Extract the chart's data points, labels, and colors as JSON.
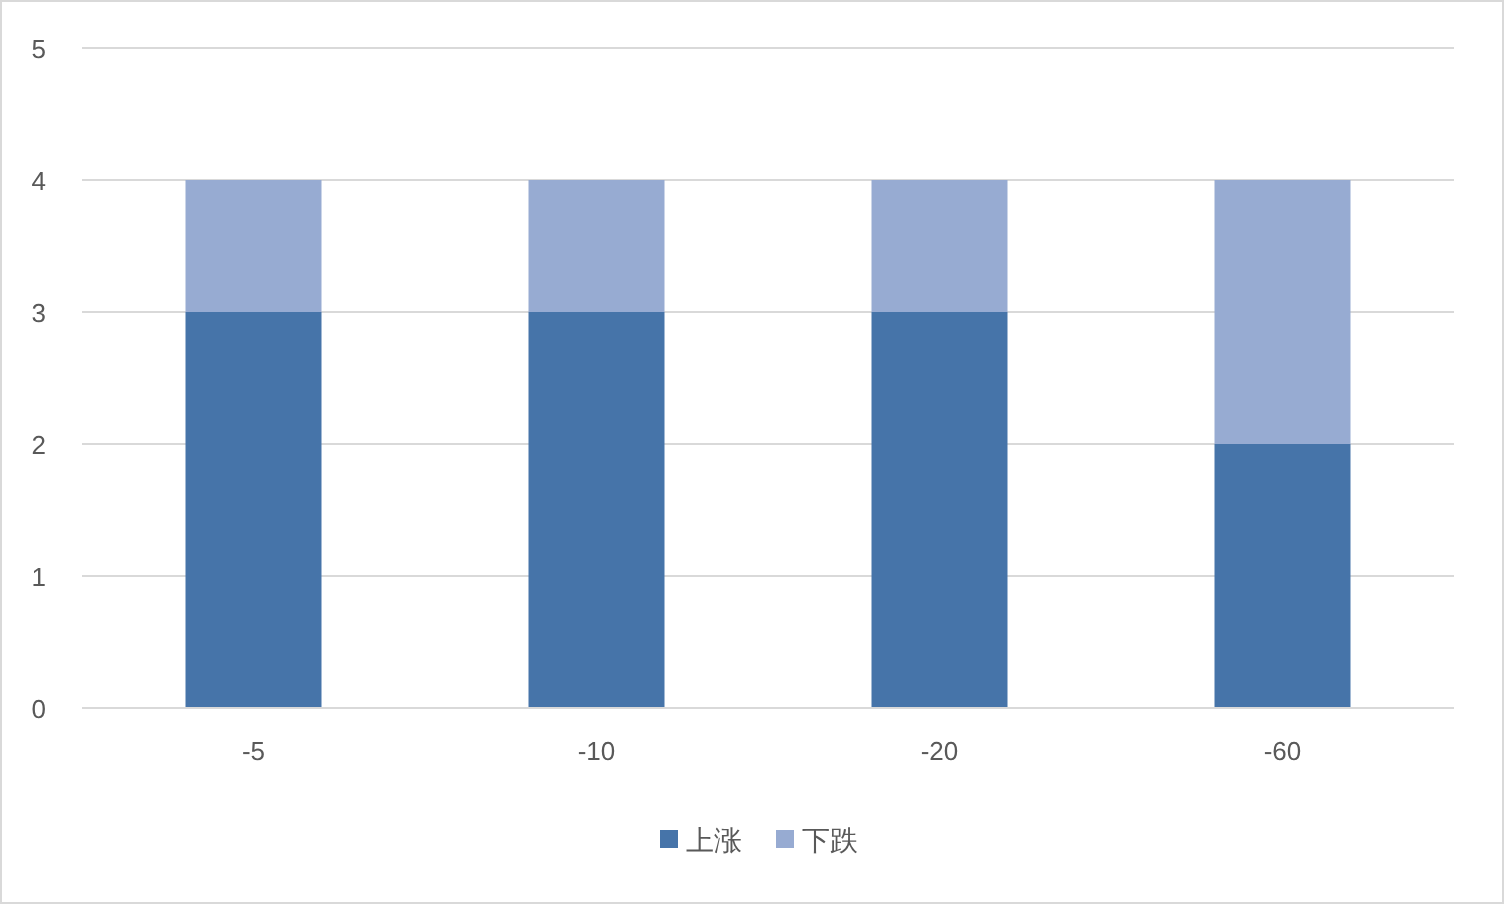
{
  "chart_data": {
    "type": "bar",
    "stacked": true,
    "categories": [
      "-5",
      "-10",
      "-20",
      "-60"
    ],
    "series": [
      {
        "name": "上涨",
        "color": "#4674a9",
        "values": [
          3,
          3,
          3,
          2
        ]
      },
      {
        "name": "下跌",
        "color": "#97abd2",
        "values": [
          1,
          1,
          1,
          2
        ]
      }
    ],
    "ylim": [
      0,
      5
    ],
    "yticks": [
      0,
      1,
      2,
      3,
      4,
      5
    ],
    "grid": "y",
    "legend": "bottom"
  }
}
